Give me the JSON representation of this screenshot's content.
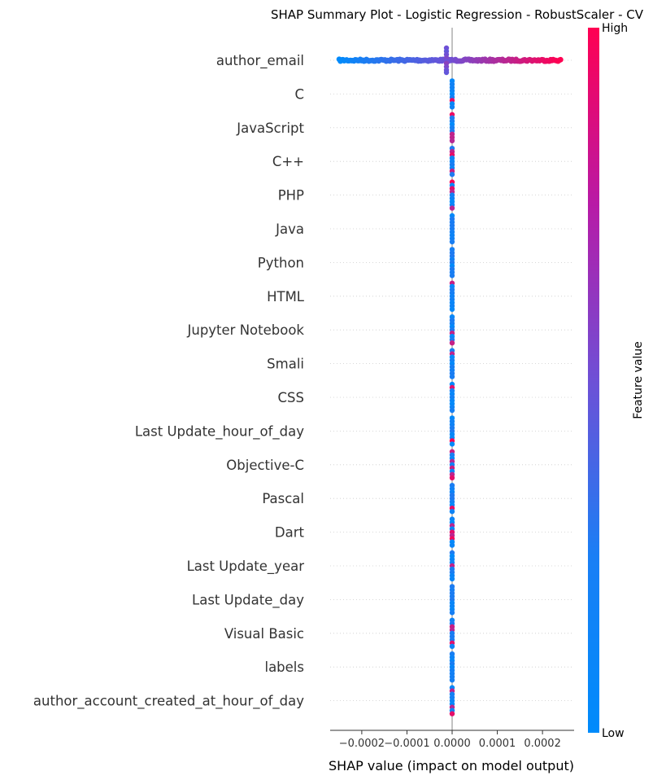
{
  "chart_data": {
    "type": "scatter",
    "title": "SHAP Summary Plot - Logistic Regression - RobustScaler - CV",
    "xlabel": "SHAP value (impact on model output)",
    "xlim": [
      -0.00027,
      0.00027
    ],
    "xticks": [
      -0.0002,
      -0.0001,
      0.0,
      0.0001,
      0.0002
    ],
    "xtick_labels": [
      "−0.0002",
      "−0.0001",
      "0.0000",
      "0.0001",
      "0.0002"
    ],
    "grid": false,
    "colorbar": {
      "label": "Feature value",
      "high_label": "High",
      "low_label": "Low",
      "low_color": "#008bfb",
      "high_color": "#ff0052"
    },
    "features": [
      {
        "name": "author_email",
        "min": -0.00025,
        "max": 0.00024,
        "spread": "wide"
      },
      {
        "name": "C",
        "min": 0,
        "max": 0,
        "spread": "none"
      },
      {
        "name": "JavaScript",
        "min": 0,
        "max": 0,
        "spread": "none"
      },
      {
        "name": "C++",
        "min": 0,
        "max": 0,
        "spread": "none"
      },
      {
        "name": "PHP",
        "min": 0,
        "max": 0,
        "spread": "none"
      },
      {
        "name": "Java",
        "min": 0,
        "max": 0,
        "spread": "none"
      },
      {
        "name": "Python",
        "min": 0,
        "max": 0,
        "spread": "none"
      },
      {
        "name": "HTML",
        "min": 0,
        "max": 0,
        "spread": "none"
      },
      {
        "name": "Jupyter Notebook",
        "min": 0,
        "max": 0,
        "spread": "none"
      },
      {
        "name": "Smali",
        "min": 0,
        "max": 0,
        "spread": "none"
      },
      {
        "name": "CSS",
        "min": 0,
        "max": 0,
        "spread": "none"
      },
      {
        "name": "Last Update_hour_of_day",
        "min": 0,
        "max": 0,
        "spread": "none"
      },
      {
        "name": "Objective-C",
        "min": 0,
        "max": 0,
        "spread": "none"
      },
      {
        "name": "Pascal",
        "min": 0,
        "max": 0,
        "spread": "none"
      },
      {
        "name": "Dart",
        "min": 0,
        "max": 0,
        "spread": "none"
      },
      {
        "name": "Last Update_year",
        "min": 0,
        "max": 0,
        "spread": "none"
      },
      {
        "name": "Last Update_day",
        "min": 0,
        "max": 0,
        "spread": "none"
      },
      {
        "name": "Visual Basic",
        "min": 0,
        "max": 0,
        "spread": "none"
      },
      {
        "name": "labels",
        "min": 0,
        "max": 0,
        "spread": "none"
      },
      {
        "name": "author_account_created_at_hour_of_day",
        "min": 0,
        "max": 0,
        "spread": "none"
      }
    ]
  }
}
